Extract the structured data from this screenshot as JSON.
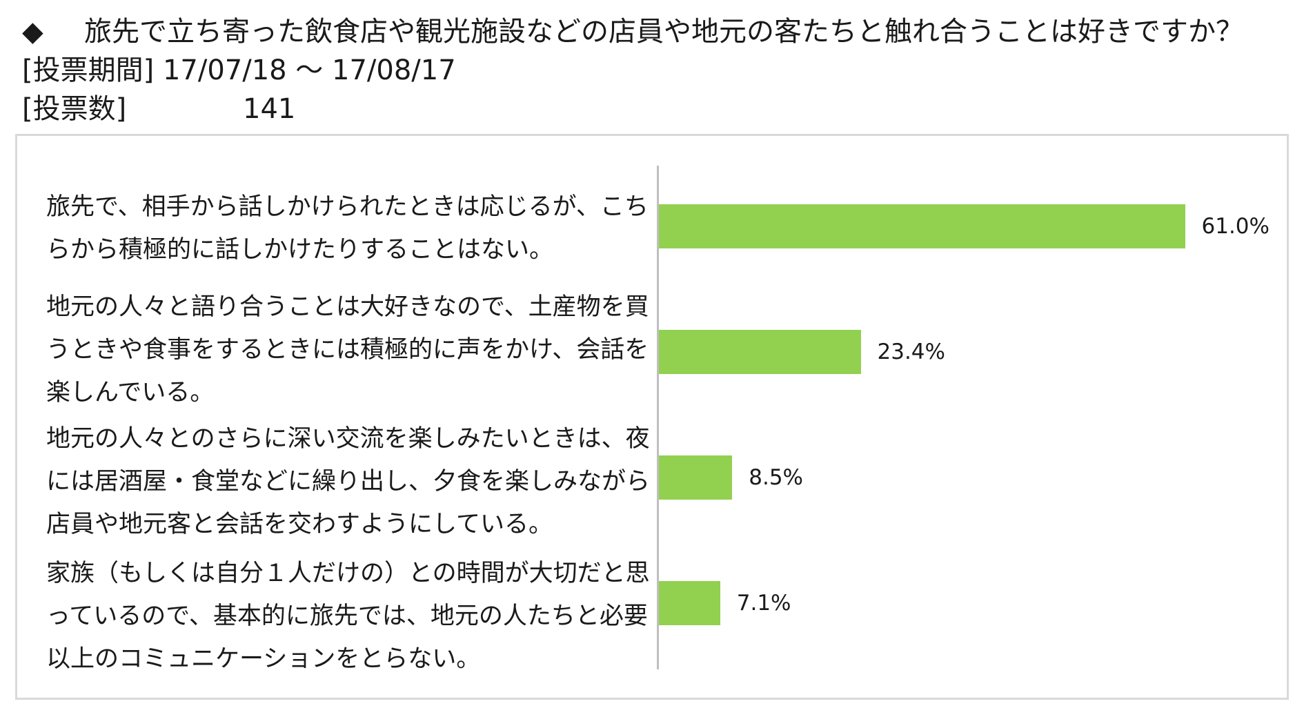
{
  "question": {
    "bullet": "◆",
    "text": "旅先で立ち寄った飲食店や観光施設などの店員や地元の客たちと触れ合うことは好きですか？"
  },
  "voting_period": {
    "label": "[投票期間]",
    "value": "17/07/18 ～ 17/08/17"
  },
  "vote_count": {
    "label": "[投票数]",
    "value": "141"
  },
  "colors": {
    "bar": "#92d050",
    "axis": "#bfbfbf",
    "frame": "#d9d9d9"
  },
  "chart_data": {
    "type": "bar",
    "orientation": "horizontal",
    "categories": [
      "旅先で、相手から話しかけられたときは応じるが、こちらから積極的に話しかけたりすることはない。",
      "地元の人々と語り合うことは大好きなので、土産物を買うときや食事をするときには積極的に声をかけ、会話を楽しんでいる。",
      "地元の人々とのさらに深い交流を楽しみたいときは、夜には居酒屋・食堂などに繰り出し、夕食を楽しみながら店員や地元客と会話を交わすようにしている。",
      "家族（もしくは自分１人だけの）との時間が大切だと思っているので、基本的に旅先では、地元の人たちと必要以上のコミュニケーションをとらない。"
    ],
    "values": [
      61.0,
      23.4,
      8.5,
      7.1
    ],
    "value_labels": [
      "61.0%",
      "23.4%",
      "8.5%",
      "7.1%"
    ],
    "unit": "%",
    "xlim": [
      0,
      100
    ],
    "grid": false,
    "legend": "none"
  }
}
